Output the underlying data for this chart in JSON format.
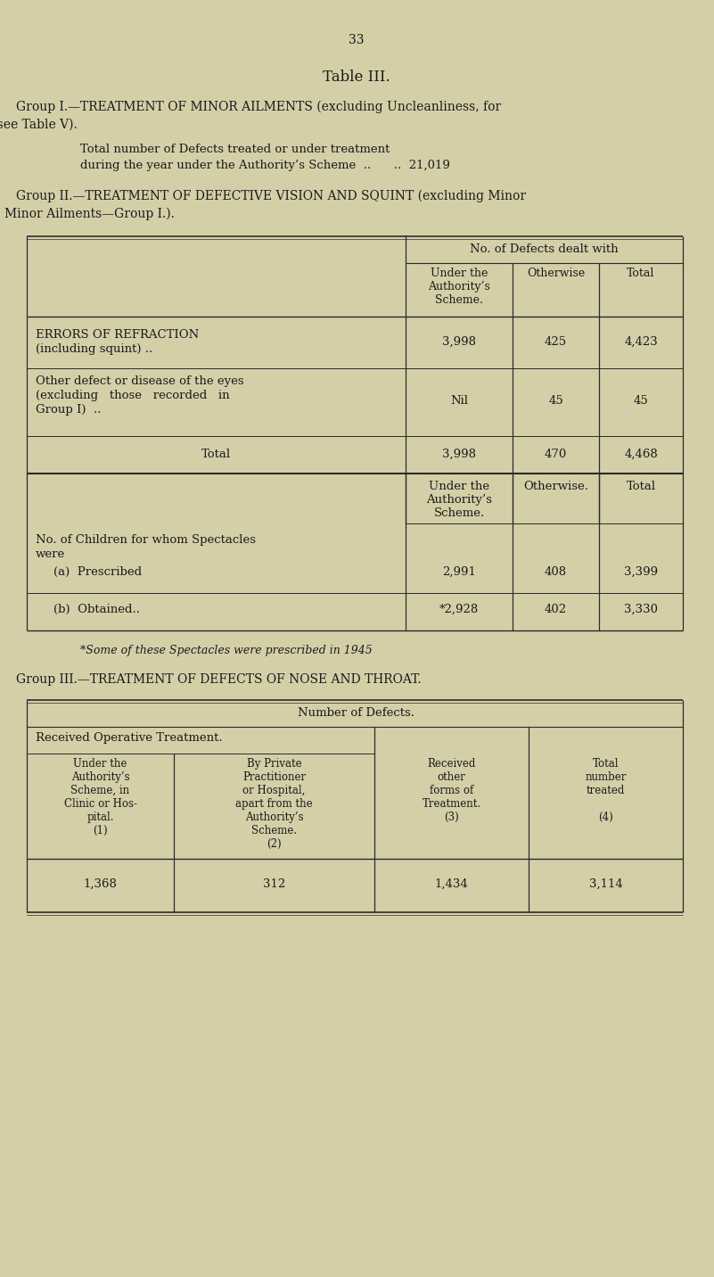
{
  "bg_color": "#d5cfa8",
  "text_color": "#1a1a1a",
  "page_number": "33",
  "title": "Table III.",
  "group1_line1": "Group I.—TREATMENT OF MINOR AILMENTS (excluding Uncleanliness, for",
  "group1_line2": "which see Table V).",
  "group1_body1": "Total number of Defects treated or under treatment",
  "group1_body2": "during the year under the Authority’s Scheme  ..      ..  21,019",
  "group2_line1": "Group II.—TREATMENT OF DEFECTIVE VISION AND SQUINT (excluding Minor",
  "group2_line2": "Eye Defects treated as Minor Ailments—Group I.).",
  "t2_merged_header": "No. of Defects dealt with",
  "t2_col1h": "Under the\nAuthority’s\nScheme.",
  "t2_col2h": "Otherwise",
  "t2_col3h": "Total",
  "t2_r1_label1": "ERRORS OF REFRACTION",
  "t2_r1_label2": "(including squint) ..",
  "t2_r1_vals": [
    "3,998",
    "425",
    "4,423"
  ],
  "t2_r2_label1": "Other defect or disease of the eyes",
  "t2_r2_label2": "(excluding   those   recorded   in",
  "t2_r2_label3": "Group I)  ..",
  "t2_r2_vals": [
    "Nil",
    "45",
    "45"
  ],
  "t2_r3_label": "Total",
  "t2_r3_vals": [
    "3,998",
    "470",
    "4,468"
  ],
  "t2b_col1h": "Under the\nAuthority’s\nScheme.",
  "t2b_col2h": "Otherwise.",
  "t2b_col3h": "Total",
  "t2b_intro1": "No. of Children for whom Spectacles",
  "t2b_intro2": "were",
  "t2b_r1_label": "(a)  Prescribed",
  "t2b_r1_vals": [
    "2,991",
    "408",
    "3,399"
  ],
  "t2b_r2_label": "(b)  Obtained..",
  "t2b_r2_vals": [
    "*2,928",
    "402",
    "3,330"
  ],
  "footnote": "*Some of these Spectacles were prescribed in 1945",
  "group3_line": "Group III.—TREATMENT OF DEFECTS OF NOSE AND THROAT.",
  "t3_header": "Number of Defects.",
  "t3_subhdr": "Received Operative Treatment.",
  "t3_col1h": "Under the\nAuthority’s\nScheme, in\nClinic or Hos-\npital.\n(1)",
  "t3_col2h": "By Private\nPractitioner\nor Hospital,\napart from the\nAuthority’s\nScheme.\n(2)",
  "t3_col3h": "Received\nother\nforms of\nTreatment.\n(3)",
  "t3_col4h": "Total\nnumber\ntreated\n\n(4)",
  "t3_vals": [
    "1,368",
    "312",
    "1,434",
    "3,114"
  ]
}
